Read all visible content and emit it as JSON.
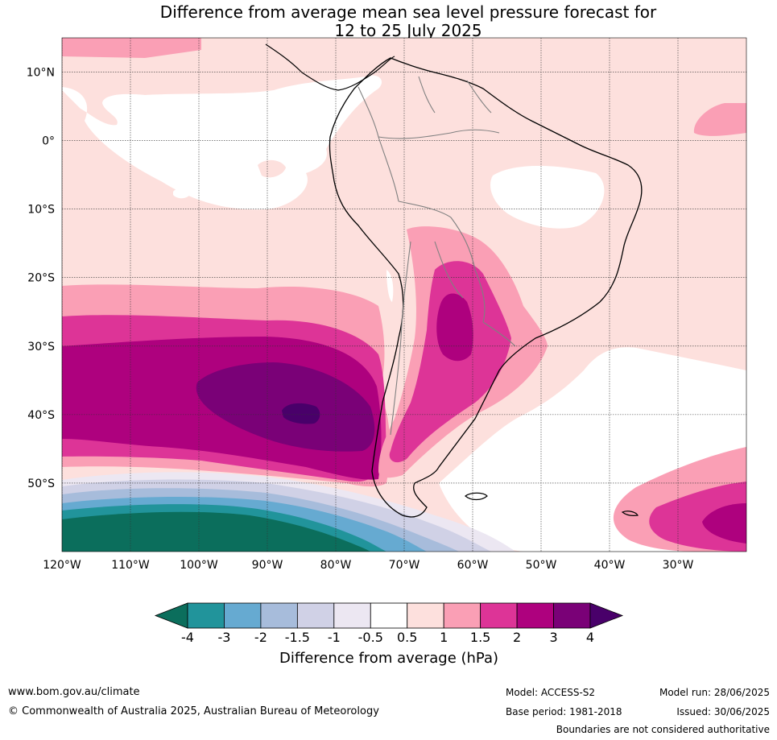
{
  "title": {
    "line1": "Difference from average mean sea level pressure forecast for",
    "line2": "12 to 25 July 2025"
  },
  "map": {
    "lat_labels": [
      "10°N",
      "0°",
      "10°S",
      "20°S",
      "30°S",
      "40°S",
      "50°S"
    ],
    "lon_labels": [
      "120°W",
      "110°W",
      "100°W",
      "90°W",
      "80°W",
      "70°W",
      "60°W",
      "50°W",
      "40°W",
      "30°W"
    ],
    "lon_range": [
      -120,
      -20
    ],
    "lat_range": [
      -60,
      15
    ]
  },
  "legend": {
    "title": "Difference from average (hPa)",
    "ticks": [
      "-4",
      "-3",
      "-2",
      "-1.5",
      "-1",
      "-0.5",
      "0.5",
      "1",
      "1.5",
      "2",
      "3",
      "4"
    ],
    "colors": [
      "#0b6e5c",
      "#21949b",
      "#66aad1",
      "#a7bcdb",
      "#d0d1e6",
      "#ece7f2",
      "#ffffff",
      "#fde0dd",
      "#fa9fb5",
      "#dd3497",
      "#ae017e",
      "#7a0177",
      "#49006a"
    ]
  },
  "footer": {
    "website": "www.bom.gov.au/climate",
    "copyright": "© Commonwealth of Australia 2025, Australian Bureau of Meteorology",
    "model": "Model: ACCESS-S2",
    "base_period": "Base period: 1981-2018",
    "model_run": "Model run: 28/06/2025",
    "issued": "Issued: 30/06/2025",
    "disclaimer": "Boundaries are not considered authoritative"
  }
}
